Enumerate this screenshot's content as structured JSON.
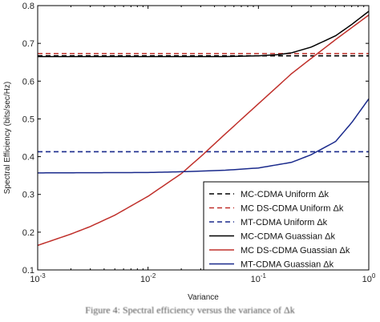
{
  "chart_data": {
    "type": "line",
    "title": "",
    "xlabel": "Variance",
    "ylabel": "Spectral Efficiency (bits/sec/Hz)",
    "xscale": "log",
    "xlim": [
      0.001,
      1
    ],
    "ylim": [
      0.1,
      0.8
    ],
    "x_ticks": [
      0.001,
      0.01,
      0.1,
      1
    ],
    "x_tick_labels": [
      {
        "base": "10",
        "exp": "-3"
      },
      {
        "base": "10",
        "exp": "-2"
      },
      {
        "base": "10",
        "exp": "-1"
      },
      {
        "base": "10",
        "exp": "0"
      }
    ],
    "y_ticks": [
      0.1,
      0.2,
      0.3,
      0.4,
      0.5,
      0.6,
      0.7,
      0.8
    ],
    "y_tick_labels": [
      "0.1",
      "0.2",
      "0.3",
      "0.4",
      "0.5",
      "0.6",
      "0.7",
      "0.8"
    ],
    "grid": false,
    "legend_position": "bottom-right",
    "series": [
      {
        "name": "MC-CDMA Uniform Δk",
        "color": "#000000",
        "dash": true,
        "x": [
          0.001,
          1
        ],
        "y": [
          0.667,
          0.667
        ]
      },
      {
        "name": "MC DS-CDMA Uniform Δk",
        "color": "#c0302b",
        "dash": true,
        "x": [
          0.001,
          1
        ],
        "y": [
          0.673,
          0.673
        ]
      },
      {
        "name": "MT-CDMA Uniform Δk",
        "color": "#1a2a8c",
        "dash": true,
        "x": [
          0.001,
          1
        ],
        "y": [
          0.413,
          0.413
        ]
      },
      {
        "name": "MC-CDMA Guassian Δk",
        "color": "#000000",
        "dash": false,
        "x": [
          0.001,
          0.01,
          0.05,
          0.1,
          0.15,
          0.2,
          0.3,
          0.5,
          0.7,
          1.0
        ],
        "y": [
          0.665,
          0.665,
          0.665,
          0.667,
          0.67,
          0.675,
          0.69,
          0.72,
          0.75,
          0.785
        ]
      },
      {
        "name": "MC DS-CDMA Guassian Δk",
        "color": "#c0302b",
        "dash": false,
        "x": [
          0.001,
          0.002,
          0.003,
          0.005,
          0.01,
          0.02,
          0.03,
          0.05,
          0.1,
          0.2,
          0.3,
          0.5,
          1.0
        ],
        "y": [
          0.165,
          0.195,
          0.215,
          0.245,
          0.295,
          0.355,
          0.4,
          0.46,
          0.54,
          0.62,
          0.66,
          0.71,
          0.775
        ]
      },
      {
        "name": "MT-CDMA Guassian Δk",
        "color": "#1a2a8c",
        "dash": false,
        "x": [
          0.001,
          0.01,
          0.02,
          0.05,
          0.1,
          0.2,
          0.3,
          0.5,
          0.7,
          1.0
        ],
        "y": [
          0.357,
          0.358,
          0.36,
          0.364,
          0.37,
          0.385,
          0.405,
          0.44,
          0.49,
          0.553
        ]
      }
    ]
  },
  "caption": "Figure 4: Spectral efficiency versus the variance of Δk"
}
